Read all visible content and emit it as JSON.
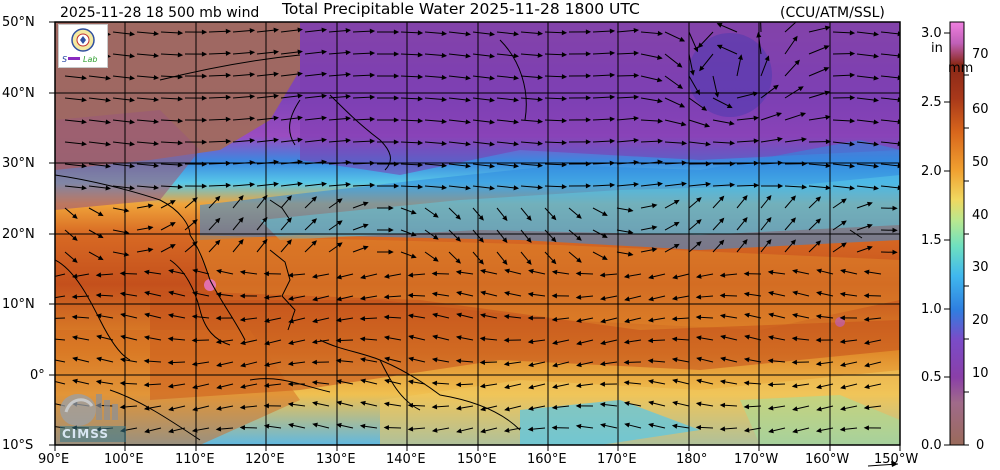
{
  "header": {
    "left": "2025-11-28 18 500 mb wind",
    "title": "Total Precipitable Water  2025-11-28 1800 UTC",
    "right": "(CCU/ATM/SSL)"
  },
  "map": {
    "lon_range_deg": [
      90,
      210
    ],
    "lat_range_deg": [
      -10,
      50
    ],
    "lat_labels": [
      "50°N",
      "40°N",
      "30°N",
      "20°N",
      "10°N",
      "0°",
      "10°S"
    ],
    "lon_labels": [
      "90°E",
      "100°E",
      "110°E",
      "120°E",
      "130°E",
      "140°E",
      "150°E",
      "160°E",
      "170°E",
      "180°",
      "170°W",
      "160°W",
      "150°W"
    ],
    "grid_step_deg": 10
  },
  "colorbar": {
    "unit_in": "in",
    "unit_mm": "mm",
    "in_ticks": [
      "3.0",
      "2.5",
      "2.0",
      "1.5",
      "1.0",
      "0.5",
      "0.0"
    ],
    "mm_ticks": [
      "70",
      "60",
      "50",
      "40",
      "30",
      "20",
      "10",
      "0"
    ],
    "range_mm": [
      0,
      80
    ],
    "colors": [
      "#9a6a5a",
      "#8a3fa8",
      "#8a44c0",
      "#2f8de8",
      "#48c8e8",
      "#9ee2a0",
      "#f0d060",
      "#e58a1e",
      "#c0521a",
      "#8a2818",
      "#e76bd0"
    ]
  },
  "logos": {
    "cimss": "CIMSS",
    "lab_icon": "lab-seal-icon"
  }
}
